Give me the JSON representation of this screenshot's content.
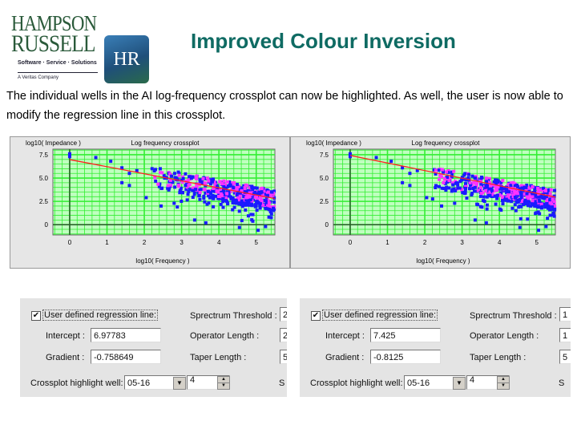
{
  "logo": {
    "line1": "HAMPSON",
    "line2": "RUSSELL",
    "tagline": "Software · Service · Solutions",
    "company": "A Veritas Company",
    "badge": "HR"
  },
  "title": "Improved Colour Inversion",
  "body": "The individual wells in the AI log-frequency crossplot can now be highlighted.  As well, the user is now able to modify the regression line in this crossplot.",
  "chart_data": [
    {
      "type": "scatter",
      "title": "Log frequency crossplot",
      "ylabel": "log10( Impedance )",
      "xlabel": "log10( Frequency )",
      "xticks": [
        "0",
        "1",
        "2",
        "3",
        "4",
        "5"
      ],
      "yticks": [
        "7.5",
        "5.0",
        "2.5",
        "0"
      ],
      "xlim": [
        -0.45,
        5.5
      ],
      "ylim": [
        -1.1,
        8.1
      ],
      "grid": true,
      "regression": {
        "intercept": 6.97783,
        "gradient": -0.758649
      },
      "colors": {
        "all": "#1a1aff",
        "highlight": "#ff33ff",
        "line": "#ff2020",
        "grid": "#33ee33",
        "bg": "#bfffbf"
      }
    },
    {
      "type": "scatter",
      "title": "Log frequency crossplot",
      "ylabel": "log10( Impedance )",
      "xlabel": "log10( Frequency )",
      "xticks": [
        "0",
        "1",
        "2",
        "3",
        "4",
        "5"
      ],
      "yticks": [
        "7.5",
        "5.0",
        "2.5",
        "0"
      ],
      "xlim": [
        -0.45,
        5.5
      ],
      "ylim": [
        -1.1,
        8.1
      ],
      "grid": true,
      "regression": {
        "intercept": 7.425,
        "gradient": -0.8125
      },
      "colors": {
        "all": "#1a1aff",
        "highlight": "#ff33ff",
        "line": "#ff2020",
        "grid": "#33ee33",
        "bg": "#bfffbf"
      }
    }
  ],
  "controls": [
    {
      "checkbox_label": "User defined regression line:",
      "checked": true,
      "intercept_label": "Intercept :",
      "intercept": "6.97783",
      "gradient_label": "Gradient :",
      "gradient": "-0.758649",
      "threshold_label": "Sprectrum Threshold :",
      "threshold_partial": "2",
      "operator_label": "Operator Length :",
      "operator_partial": "2",
      "taper_label": "Taper Length :",
      "taper_partial": "5",
      "well_label": "Crossplot highlight well:",
      "well": "05-16",
      "well_spin": "4",
      "cut_label": "S"
    },
    {
      "checkbox_label": "User defined regression line:",
      "checked": true,
      "intercept_label": "Intercept :",
      "intercept": "7.425",
      "gradient_label": "Gradient :",
      "gradient": "-0.8125",
      "threshold_label": "Sprectrum Threshold :",
      "threshold_partial": "1",
      "operator_label": "Operator Length :",
      "operator_partial": "1",
      "taper_label": "Taper Length :",
      "taper_partial": "5",
      "well_label": "Crossplot highlight well:",
      "well": "05-16",
      "well_spin": "4",
      "cut_label": "S"
    }
  ]
}
